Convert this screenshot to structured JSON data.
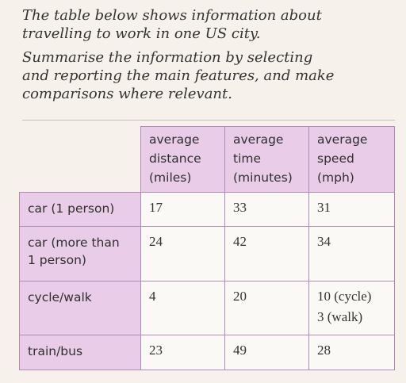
{
  "prompt": {
    "line1": "The table below shows information about",
    "line2": "travelling to work in one US city.",
    "line3": "Summarise the information by selecting",
    "line4": "and reporting the main features, and make",
    "line5": "comparisons where relevant."
  },
  "table": {
    "columns": [
      {
        "l1": "average",
        "l2": "distance",
        "l3": "(miles)"
      },
      {
        "l1": "average",
        "l2": "time",
        "l3": "(minutes)"
      },
      {
        "l1": "average",
        "l2": "speed",
        "l3": "(mph)"
      }
    ],
    "rows": [
      {
        "l1": "car (1 person)",
        "l2": "",
        "distance": "17",
        "time": "33",
        "speed1": "31",
        "speed2": ""
      },
      {
        "l1": "car (more than",
        "l2": "1 person)",
        "distance": "24",
        "time": "42",
        "speed1": "34",
        "speed2": ""
      },
      {
        "l1": "cycle/walk",
        "l2": "",
        "distance": "4",
        "time": "20",
        "speed1": "10 (cycle)",
        "speed2": "3 (walk)"
      },
      {
        "l1": "train/bus",
        "l2": "",
        "distance": "23",
        "time": "49",
        "speed1": "28",
        "speed2": ""
      }
    ]
  }
}
